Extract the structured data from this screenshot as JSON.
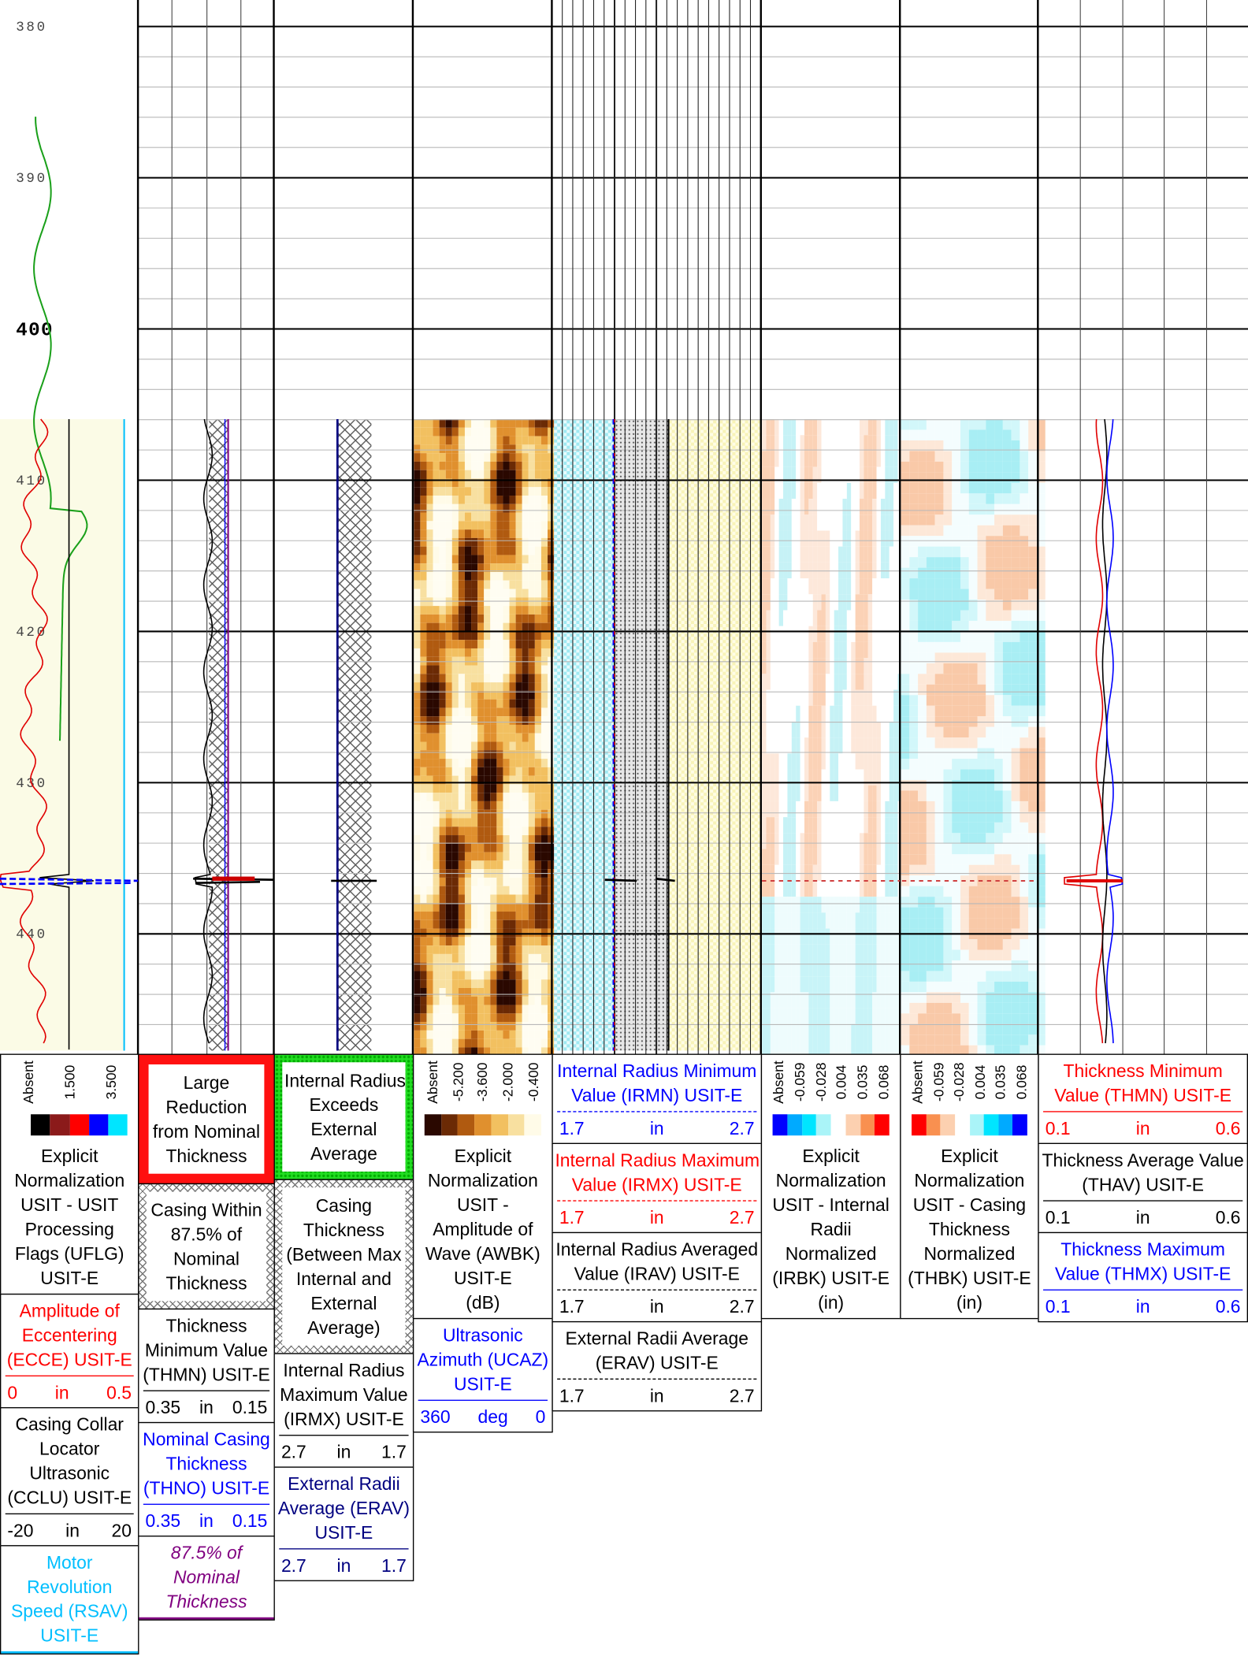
{
  "depth_axis": {
    "labels": [
      380,
      390,
      400,
      410,
      420,
      430,
      440
    ],
    "bold_label": 400
  },
  "tracks": [
    {
      "blocks": [
        {
          "scale_labels": [
            "Absent",
            "1.500",
            "3.500"
          ],
          "colors": [
            "#ffffff",
            "#000000",
            "#8b1a1a",
            "#ff0000",
            "#0000ff",
            "#00e5ff"
          ],
          "lines": [
            "Explicit",
            "Normalization",
            "USIT - USIT",
            "Processing",
            "Flags (UFLG)",
            "USIT-E"
          ]
        },
        {
          "lines": [
            "Amplitude of",
            "Eccentering",
            "(ECCE) USIT-E"
          ],
          "scale": [
            "0",
            "in",
            "0.5"
          ],
          "color": "#ff0000"
        },
        {
          "lines": [
            "Casing Collar",
            "Locator",
            "Ultrasonic",
            "(CCLU) USIT-E"
          ],
          "scale": [
            "-20",
            "in",
            "20"
          ],
          "color": "#000000"
        },
        {
          "lines": [
            "Motor",
            "Revolution",
            "Speed (RSAV)",
            "USIT-E"
          ],
          "color": "#00bfff"
        }
      ]
    },
    {
      "blocks": [
        {
          "lines": [
            "Large",
            "Reduction",
            "from Nominal",
            "Thickness"
          ]
        },
        {
          "lines": [
            "Casing Within",
            "87.5% of",
            "Nominal",
            "Thickness"
          ]
        },
        {
          "lines": [
            "Thickness",
            "Minimum Value",
            "(THMN) USIT-E"
          ],
          "scale": [
            "0.35",
            "in",
            "0.15"
          ],
          "color": "#000000"
        },
        {
          "lines": [
            "Nominal Casing",
            "Thickness",
            "(THNO) USIT-E"
          ],
          "scale": [
            "0.35",
            "in",
            "0.15"
          ],
          "color": "#0000ff"
        },
        {
          "lines": [
            "87.5% of",
            "Nominal",
            "Thickness"
          ],
          "color": "#800080"
        }
      ]
    },
    {
      "blocks": [
        {
          "lines": [
            "Internal Radius",
            "Exceeds",
            "External",
            "Average"
          ]
        },
        {
          "lines": [
            "Casing",
            "Thickness",
            "(Between Max",
            "Internal and",
            "External",
            "Average)"
          ]
        },
        {
          "lines": [
            "Internal Radius",
            "Maximum Value",
            "(IRMX) USIT-E"
          ],
          "scale": [
            "2.7",
            "in",
            "1.7"
          ],
          "color": "#000000"
        },
        {
          "lines": [
            "External Radii",
            "Average (ERAV)",
            "USIT-E"
          ],
          "scale": [
            "2.7",
            "in",
            "1.7"
          ],
          "color": "#000080"
        }
      ]
    },
    {
      "blocks": [
        {
          "scale_labels": [
            "Absent",
            "-5.200",
            "-3.600",
            "-2.000",
            "-0.400"
          ],
          "colors": [
            "#2a0800",
            "#6b2a05",
            "#b05a10",
            "#e0902e",
            "#f2c060",
            "#f8e0a0",
            "#fffbe8"
          ],
          "lines": [
            "Explicit",
            "Normalization",
            "USIT -",
            "Amplitude of",
            "Wave (AWBK)",
            "USIT-E",
            "(dB)"
          ]
        },
        {
          "lines": [
            "Ultrasonic",
            "Azimuth (UCAZ)",
            "USIT-E"
          ],
          "scale": [
            "360",
            "deg",
            "0"
          ],
          "color": "#0000ff"
        }
      ]
    },
    {
      "blocks": [
        {
          "lines": [
            "Internal Radius Minimum",
            "Value (IRMN) USIT-E"
          ],
          "scale": [
            "1.7",
            "in",
            "2.7"
          ],
          "color": "#0000ff"
        },
        {
          "lines": [
            "Internal Radius Maximum",
            "Value (IRMX) USIT-E"
          ],
          "scale": [
            "1.7",
            "in",
            "2.7"
          ],
          "color": "#ff0000"
        },
        {
          "lines": [
            "Internal Radius Averaged",
            "Value (IRAV) USIT-E"
          ],
          "scale": [
            "1.7",
            "in",
            "2.7"
          ],
          "color": "#000000"
        },
        {
          "lines": [
            "External Radii Average",
            "(ERAV) USIT-E"
          ],
          "scale": [
            "1.7",
            "in",
            "2.7"
          ],
          "color": "#000000"
        }
      ]
    },
    {
      "blocks": [
        {
          "scale_labels": [
            "Absent",
            "-0.059",
            "-0.028",
            "0.004",
            "0.035",
            "0.068"
          ],
          "colors": [
            "#0000ff",
            "#00aaff",
            "#00e5ff",
            "#aaf4f8",
            "#ffffff",
            "#fcd0b0",
            "#f99050",
            "#ff0000"
          ],
          "lines": [
            "Explicit",
            "Normalization",
            "USIT - Internal",
            "Radii",
            "Normalized",
            "(IRBK) USIT-E",
            "(in)"
          ]
        }
      ]
    },
    {
      "blocks": [
        {
          "scale_labels": [
            "Absent",
            "-0.059",
            "-0.028",
            "0.004",
            "0.035",
            "0.068"
          ],
          "colors": [
            "#ff0000",
            "#f99050",
            "#fcd0b0",
            "#ffffff",
            "#aaf4f8",
            "#00e5ff",
            "#00aaff",
            "#0000ff"
          ],
          "lines": [
            "Explicit",
            "Normalization",
            "USIT - Casing",
            "Thickness",
            "Normalized",
            "(THBK) USIT-E",
            "(in)"
          ]
        }
      ]
    },
    {
      "blocks": [
        {
          "lines": [
            "Thickness Minimum",
            "Value (THMN) USIT-E"
          ],
          "scale": [
            "0.1",
            "in",
            "0.6"
          ],
          "color": "#ff0000"
        },
        {
          "lines": [
            "Thickness Average Value",
            "(THAV) USIT-E"
          ],
          "scale": [
            "0.1",
            "in",
            "0.6"
          ],
          "color": "#000000"
        },
        {
          "lines": [
            "Thickness Maximum",
            "Value (THMX) USIT-E"
          ],
          "scale": [
            "0.1",
            "in",
            "0.6"
          ],
          "color": "#0000ff"
        }
      ]
    }
  ]
}
